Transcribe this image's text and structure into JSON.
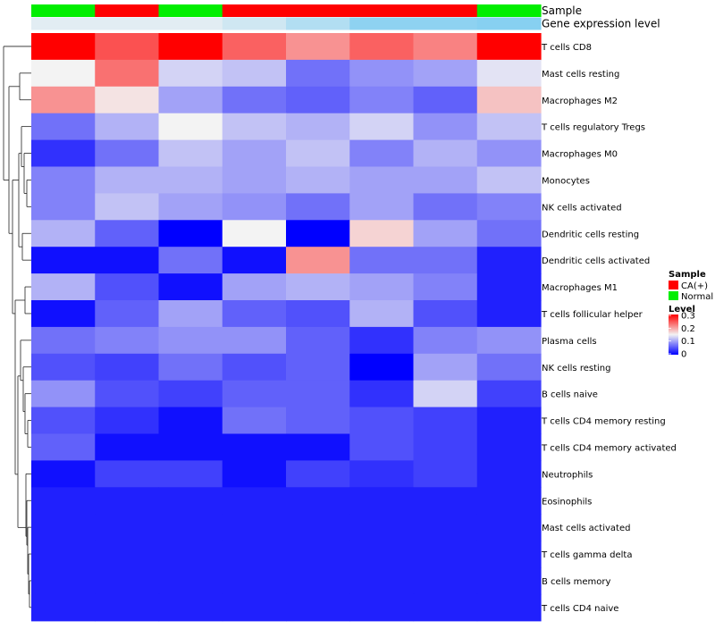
{
  "chart_data": {
    "type": "heatmap",
    "annotation_tracks": [
      {
        "label": "Sample",
        "values": [
          "Normal",
          "CA(+)",
          "Normal",
          "CA(+)",
          "CA(+)",
          "CA(+)",
          "CA(+)",
          "Normal"
        ],
        "colors": {
          "CA(+)": "#ff0000",
          "Normal": "#00ee00"
        }
      },
      {
        "label": "Gene expression level",
        "values": [
          0.12,
          0.12,
          0.12,
          0.25,
          0.45,
          0.7,
          0.7,
          0.75
        ],
        "color_low": "#f3f3f3",
        "color_high": "#63c4f0"
      }
    ],
    "rows": [
      "T cells CD8",
      "Mast cells resting",
      "Macrophages M2",
      "T cells regulatory  Tregs",
      "Macrophages M0",
      "Monocytes",
      "NK cells activated",
      "Dendritic cells resting",
      "Dendritic cells activated",
      "Macrophages M1",
      "T cells follicular helper",
      "Plasma cells",
      "NK cells resting",
      "B cells naive",
      "T cells CD4 memory resting",
      "T cells CD4 memory activated",
      "Neutrophils",
      "Eosinophils",
      "Mast cells activated",
      "T cells gamma delta",
      "B cells memory",
      "T cells CD4 naive"
    ],
    "n_columns": 8,
    "values": [
      [
        0.3,
        0.25,
        0.3,
        0.24,
        0.21,
        0.24,
        0.22,
        0.3
      ],
      [
        0.15,
        0.23,
        0.13,
        0.12,
        0.07,
        0.09,
        0.1,
        0.14
      ],
      [
        0.21,
        0.16,
        0.1,
        0.07,
        0.06,
        0.08,
        0.06,
        0.18
      ],
      [
        0.07,
        0.11,
        0.15,
        0.12,
        0.11,
        0.13,
        0.09,
        0.12
      ],
      [
        0.03,
        0.07,
        0.12,
        0.1,
        0.12,
        0.08,
        0.11,
        0.09
      ],
      [
        0.08,
        0.11,
        0.11,
        0.1,
        0.11,
        0.1,
        0.1,
        0.12
      ],
      [
        0.08,
        0.12,
        0.1,
        0.09,
        0.07,
        0.1,
        0.07,
        0.08
      ],
      [
        0.11,
        0.06,
        0.0,
        0.15,
        0.0,
        0.17,
        0.1,
        0.07
      ],
      [
        0.01,
        0.01,
        0.07,
        0.01,
        0.21,
        0.07,
        0.07,
        0.02
      ],
      [
        0.11,
        0.05,
        0.01,
        0.1,
        0.11,
        0.1,
        0.08,
        0.02
      ],
      [
        0.01,
        0.06,
        0.1,
        0.06,
        0.05,
        0.11,
        0.05,
        0.02
      ],
      [
        0.07,
        0.08,
        0.09,
        0.09,
        0.06,
        0.03,
        0.08,
        0.09
      ],
      [
        0.05,
        0.04,
        0.07,
        0.05,
        0.06,
        0.0,
        0.1,
        0.07
      ],
      [
        0.09,
        0.05,
        0.04,
        0.06,
        0.06,
        0.03,
        0.13,
        0.04
      ],
      [
        0.05,
        0.03,
        0.01,
        0.07,
        0.06,
        0.05,
        0.04,
        0.02
      ],
      [
        0.06,
        0.01,
        0.01,
        0.01,
        0.01,
        0.05,
        0.04,
        0.02
      ],
      [
        0.01,
        0.04,
        0.04,
        0.01,
        0.04,
        0.03,
        0.04,
        0.02
      ],
      [
        0.02,
        0.02,
        0.02,
        0.02,
        0.02,
        0.02,
        0.02,
        0.02
      ],
      [
        0.02,
        0.02,
        0.02,
        0.02,
        0.02,
        0.02,
        0.02,
        0.02
      ],
      [
        0.02,
        0.02,
        0.02,
        0.02,
        0.02,
        0.02,
        0.02,
        0.02
      ],
      [
        0.02,
        0.02,
        0.02,
        0.02,
        0.02,
        0.02,
        0.02,
        0.02
      ],
      [
        0.02,
        0.02,
        0.02,
        0.02,
        0.02,
        0.02,
        0.02,
        0.02
      ]
    ],
    "color_scale": {
      "min": 0,
      "mid": 0.15,
      "max": 0.3,
      "low": "#0000ff",
      "mid_color": "#f3f3f3",
      "high": "#ff0000"
    },
    "legend": {
      "placement": "right",
      "sample_title": "Sample",
      "sample_items": [
        "CA(+)",
        "Normal"
      ],
      "level_title": "Level",
      "level_ticks": [
        "0.3",
        "0.2",
        "0.1",
        "0"
      ]
    },
    "dendrogram": "rows-left",
    "grid": false
  }
}
